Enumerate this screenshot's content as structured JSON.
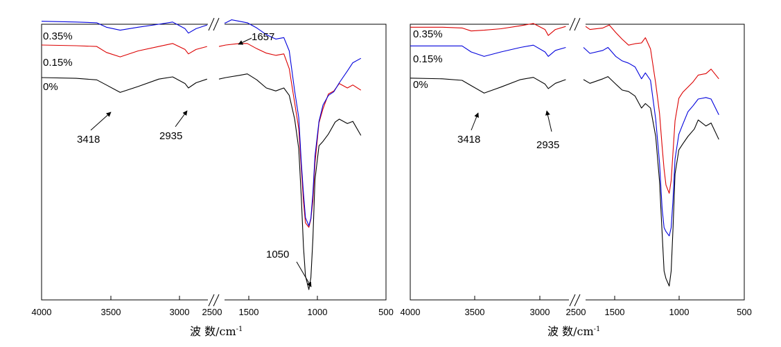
{
  "chart_data": [
    {
      "type": "line",
      "title": "",
      "xlabel": "波 数/cm",
      "xlabel_sup": "-1",
      "ylabel": "",
      "xlim": [
        4000,
        500
      ],
      "axis_break": [
        2800,
        1750
      ],
      "xticks": [
        4000,
        3500,
        3000,
        2500,
        1500,
        1000,
        500
      ],
      "xtick_labels": [
        "4000",
        "3500",
        "3000",
        "2500",
        "1500",
        "1000",
        "500"
      ],
      "series": [
        {
          "name": "0%",
          "color": "#000000",
          "offset": 0,
          "points": [
            [
              4000,
              72
            ],
            [
              3750,
              73
            ],
            [
              3600,
              75
            ],
            [
              3530,
              82
            ],
            [
              3430,
              92
            ],
            [
              3300,
              84
            ],
            [
              3150,
              74
            ],
            [
              3050,
              71
            ],
            [
              2960,
              80
            ],
            [
              2935,
              86
            ],
            [
              2880,
              79
            ],
            [
              2800,
              74
            ],
            [
              1750,
              74
            ],
            [
              1700,
              72
            ],
            [
              1600,
              69
            ],
            [
              1540,
              67
            ],
            [
              1470,
              75
            ],
            [
              1400,
              86
            ],
            [
              1330,
              90
            ],
            [
              1270,
              86
            ],
            [
              1230,
              96
            ],
            [
              1190,
              128
            ],
            [
              1160,
              168
            ],
            [
              1140,
              236
            ],
            [
              1125,
              300
            ],
            [
              1110,
              340
            ],
            [
              1085,
              358
            ],
            [
              1070,
              342
            ],
            [
              1055,
              290
            ],
            [
              1040,
              210
            ],
            [
              1010,
              164
            ],
            [
              980,
              158
            ],
            [
              940,
              148
            ],
            [
              890,
              132
            ],
            [
              860,
              128
            ],
            [
              800,
              134
            ],
            [
              760,
              131
            ],
            [
              700,
              150
            ]
          ]
        },
        {
          "name": "0.15%",
          "color": "#dc0000",
          "offset": -44,
          "points": [
            [
              4000,
              72
            ],
            [
              3750,
              73
            ],
            [
              3600,
              74
            ],
            [
              3530,
              82
            ],
            [
              3430,
              88
            ],
            [
              3300,
              80
            ],
            [
              3150,
              74
            ],
            [
              3050,
              70
            ],
            [
              2960,
              78
            ],
            [
              2935,
              84
            ],
            [
              2880,
              78
            ],
            [
              2800,
              74
            ],
            [
              1750,
              74
            ],
            [
              1700,
              72
            ],
            [
              1600,
              70
            ],
            [
              1540,
              70
            ],
            [
              1470,
              77
            ],
            [
              1400,
              83
            ],
            [
              1330,
              86
            ],
            [
              1270,
              84
            ],
            [
              1230,
              104
            ],
            [
              1190,
              150
            ],
            [
              1160,
              185
            ],
            [
              1140,
              240
            ],
            [
              1125,
              283
            ],
            [
              1110,
              312
            ],
            [
              1085,
              318
            ],
            [
              1070,
              307
            ],
            [
              1055,
              282
            ],
            [
              1040,
              232
            ],
            [
              1010,
              177
            ],
            [
              980,
              158
            ],
            [
              940,
              138
            ],
            [
              900,
              134
            ],
            [
              860,
              124
            ],
            [
              800,
              130
            ],
            [
              760,
              126
            ],
            [
              700,
              133
            ]
          ]
        },
        {
          "name": "0.35%",
          "color": "#0000dc",
          "offset": -74,
          "points": [
            [
              4000,
              70
            ],
            [
              3750,
              71
            ],
            [
              3600,
              72
            ],
            [
              3530,
              78
            ],
            [
              3430,
              82
            ],
            [
              3300,
              78
            ],
            [
              3150,
              74
            ],
            [
              3050,
              71
            ],
            [
              2960,
              80
            ],
            [
              2935,
              86
            ],
            [
              2880,
              80
            ],
            [
              2800,
              75
            ],
            [
              1750,
              74
            ],
            [
              1700,
              72
            ],
            [
              1657,
              68
            ],
            [
              1600,
              70
            ],
            [
              1540,
              72
            ],
            [
              1470,
              79
            ],
            [
              1400,
              88
            ],
            [
              1330,
              94
            ],
            [
              1270,
              92
            ],
            [
              1230,
              110
            ],
            [
              1190,
              164
            ],
            [
              1160,
              200
            ],
            [
              1140,
              262
            ],
            [
              1125,
              302
            ],
            [
              1110,
              335
            ],
            [
              1085,
              346
            ],
            [
              1070,
              336
            ],
            [
              1055,
              302
            ],
            [
              1040,
              252
            ],
            [
              1010,
              205
            ],
            [
              980,
              183
            ],
            [
              940,
              170
            ],
            [
              900,
              165
            ],
            [
              860,
              153
            ],
            [
              800,
              137
            ],
            [
              760,
              126
            ],
            [
              700,
              120
            ]
          ]
        }
      ],
      "series_labels": [
        "0.35%",
        "0.15%",
        "0%"
      ],
      "annotations": [
        "1657",
        "3418",
        "2935",
        "1050"
      ]
    },
    {
      "type": "line",
      "title": "",
      "xlabel": "波 数/cm",
      "xlabel_sup": "-1",
      "ylabel": "",
      "xlim": [
        4000,
        500
      ],
      "axis_break": [
        2800,
        1750
      ],
      "xticks": [
        4000,
        3500,
        3000,
        2500,
        1500,
        1000,
        500
      ],
      "xtick_labels": [
        "4000",
        "3500",
        "3000",
        "2500",
        "1500",
        "1000",
        "500"
      ],
      "series": [
        {
          "name": "0%",
          "color": "#000000",
          "offset": 0,
          "points": [
            [
              4000,
              72
            ],
            [
              3750,
              73
            ],
            [
              3600,
              75
            ],
            [
              3530,
              82
            ],
            [
              3430,
              92
            ],
            [
              3300,
              84
            ],
            [
              3150,
              74
            ],
            [
              3050,
              71
            ],
            [
              2960,
              80
            ],
            [
              2935,
              86
            ],
            [
              2880,
              79
            ],
            [
              2800,
              74
            ],
            [
              1750,
              74
            ],
            [
              1700,
              79
            ],
            [
              1600,
              73
            ],
            [
              1560,
              70
            ],
            [
              1500,
              80
            ],
            [
              1450,
              88
            ],
            [
              1400,
              90
            ],
            [
              1350,
              96
            ],
            [
              1300,
              112
            ],
            [
              1270,
              106
            ],
            [
              1230,
              112
            ],
            [
              1190,
              150
            ],
            [
              1160,
              210
            ],
            [
              1140,
              280
            ],
            [
              1125,
              330
            ],
            [
              1110,
              340
            ],
            [
              1085,
              350
            ],
            [
              1070,
              330
            ],
            [
              1055,
              270
            ],
            [
              1040,
              200
            ],
            [
              1010,
              168
            ],
            [
              980,
              160
            ],
            [
              940,
              150
            ],
            [
              890,
              140
            ],
            [
              860,
              128
            ],
            [
              800,
              136
            ],
            [
              760,
              132
            ],
            [
              700,
              154
            ]
          ]
        },
        {
          "name": "0.15%",
          "color": "#0000dc",
          "offset": -43,
          "points": [
            [
              4000,
              72
            ],
            [
              3750,
              72
            ],
            [
              3600,
              72
            ],
            [
              3530,
              80
            ],
            [
              3430,
              86
            ],
            [
              3300,
              80
            ],
            [
              3150,
              74
            ],
            [
              3050,
              71
            ],
            [
              2960,
              80
            ],
            [
              2935,
              86
            ],
            [
              2880,
              78
            ],
            [
              2800,
              74
            ],
            [
              1750,
              74
            ],
            [
              1700,
              82
            ],
            [
              1600,
              78
            ],
            [
              1560,
              74
            ],
            [
              1500,
              86
            ],
            [
              1450,
              92
            ],
            [
              1400,
              95
            ],
            [
              1350,
              100
            ],
            [
              1300,
              116
            ],
            [
              1270,
              108
            ],
            [
              1230,
              118
            ],
            [
              1190,
              170
            ],
            [
              1160,
              228
            ],
            [
              1140,
              290
            ],
            [
              1125,
              315
            ],
            [
              1110,
              320
            ],
            [
              1085,
              326
            ],
            [
              1070,
              315
            ],
            [
              1055,
              275
            ],
            [
              1040,
              223
            ],
            [
              1010,
              190
            ],
            [
              980,
              177
            ],
            [
              940,
              160
            ],
            [
              900,
              152
            ],
            [
              860,
              143
            ],
            [
              800,
              141
            ],
            [
              760,
              143
            ],
            [
              700,
              164
            ]
          ]
        },
        {
          "name": "0.35%",
          "color": "#dc0000",
          "offset": -71,
          "points": [
            [
              4000,
              75
            ],
            [
              3750,
              75
            ],
            [
              3600,
              76
            ],
            [
              3530,
              80
            ],
            [
              3430,
              79
            ],
            [
              3300,
              77
            ],
            [
              3150,
              73
            ],
            [
              3050,
              70
            ],
            [
              2960,
              78
            ],
            [
              2935,
              86
            ],
            [
              2880,
              78
            ],
            [
              2800,
              74
            ],
            [
              1750,
              72
            ],
            [
              1700,
              78
            ],
            [
              1600,
              76
            ],
            [
              1550,
              72
            ],
            [
              1500,
              82
            ],
            [
              1450,
              91
            ],
            [
              1400,
              99
            ],
            [
              1350,
              97
            ],
            [
              1300,
              96
            ],
            [
              1270,
              89
            ],
            [
              1230,
              104
            ],
            [
              1190,
              150
            ],
            [
              1160,
              190
            ],
            [
              1140,
              235
            ],
            [
              1125,
              265
            ],
            [
              1110,
              286
            ],
            [
              1085,
              297
            ],
            [
              1070,
              280
            ],
            [
              1055,
              240
            ],
            [
              1040,
              200
            ],
            [
              1010,
              170
            ],
            [
              980,
              162
            ],
            [
              940,
              155
            ],
            [
              900,
              148
            ],
            [
              860,
              139
            ],
            [
              800,
              137
            ],
            [
              760,
              131
            ],
            [
              700,
              144
            ]
          ]
        }
      ],
      "series_labels": [
        "0.35%",
        "0.15%",
        "0%"
      ],
      "annotations": [
        "3418",
        "2935"
      ]
    }
  ]
}
